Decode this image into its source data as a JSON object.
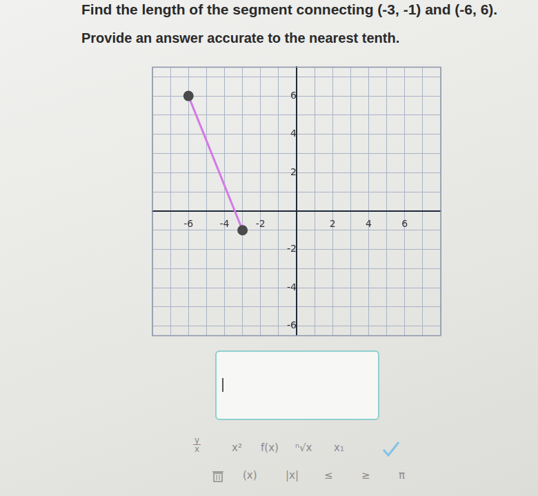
{
  "question": {
    "prompt": "Find the length of the segment connecting (-3, -1) and (-6, 6).",
    "instruction": "Provide an answer accurate to the nearest tenth."
  },
  "chart_data": {
    "type": "scatter",
    "x": [
      -3,
      -6
    ],
    "values": [
      -1,
      6
    ],
    "color": "#d27ae6",
    "marker": "circle",
    "line_style": "solid",
    "xlim": [
      -8,
      8
    ],
    "ylim": [
      -6.5,
      7.5
    ],
    "xticks": [
      -6,
      -4,
      -2,
      2,
      4,
      6
    ],
    "yticks": [
      -6,
      -4,
      -2,
      2,
      4,
      6
    ],
    "grid": true
  },
  "toolbar": {
    "row1": [
      {
        "numerator": "y",
        "denominator": "x"
      },
      "x²",
      "f(x)",
      "ⁿ√x",
      "x₁"
    ],
    "row2": [
      "(x)",
      "|x|",
      "≤",
      "≥",
      "π"
    ]
  }
}
